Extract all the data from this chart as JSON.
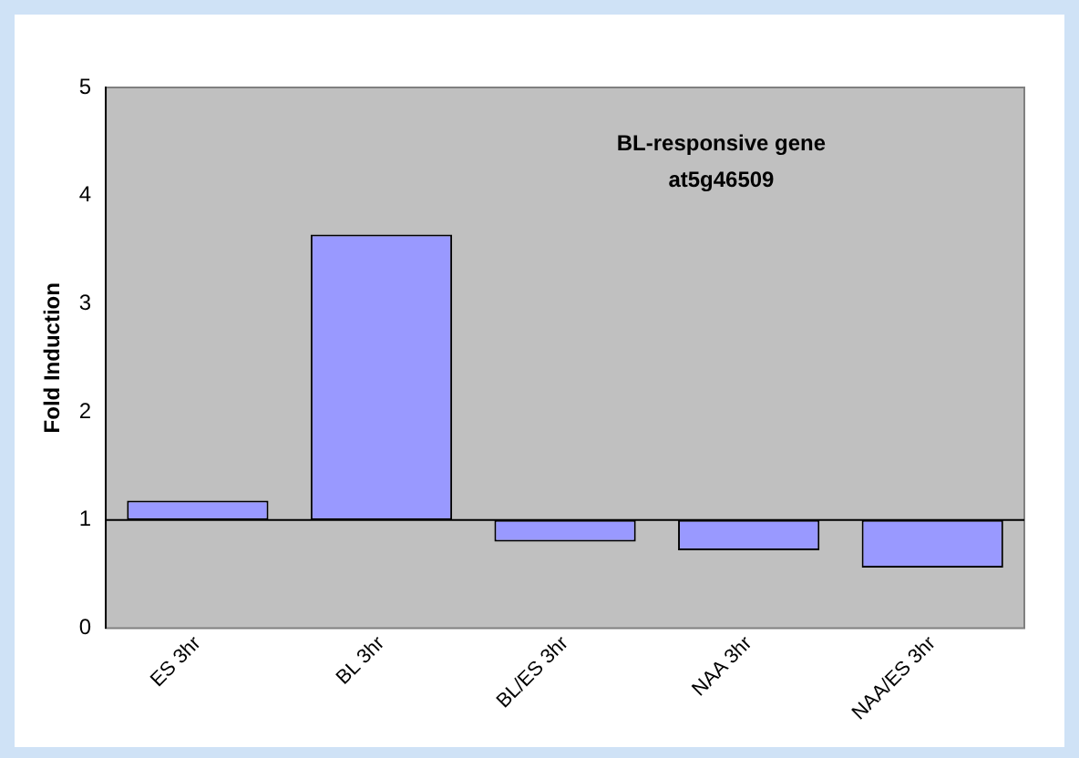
{
  "chart_data": {
    "type": "bar",
    "title": "BL-responsive gene at5g46509",
    "ylabel": "Fold Induction",
    "categories": [
      "ES 3hr",
      "BL 3hr",
      "BL/ES 3hr",
      "NAA 3hr",
      "NAA/ES 3hr"
    ],
    "base": [
      1,
      1,
      1,
      1,
      1
    ],
    "values": [
      0.18,
      2.64,
      -0.2,
      -0.28,
      -0.44
    ],
    "color": "#9999ff",
    "ref_lines": [
      {
        "axis": "y",
        "value": 1,
        "color": "#000000"
      }
    ],
    "ylim": [
      0,
      5
    ],
    "yticks": [
      0,
      1,
      2,
      3,
      4,
      5
    ],
    "grid": false,
    "legend": false
  }
}
